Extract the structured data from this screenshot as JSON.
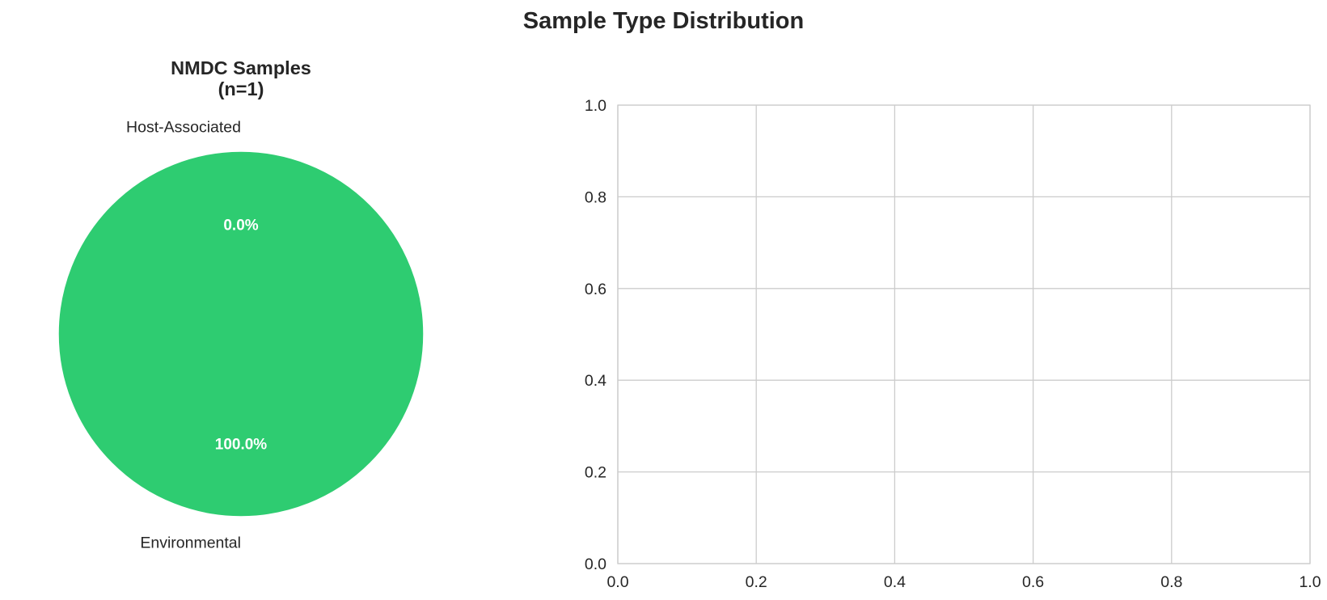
{
  "figure": {
    "title": "Sample Type Distribution"
  },
  "chart_data": [
    {
      "type": "pie",
      "title": "NMDC Samples\n(n=1)",
      "labels": [
        "Host-Associated",
        "Environmental"
      ],
      "values": [
        0,
        1
      ],
      "percent_labels": [
        "0.0%",
        "100.0%"
      ],
      "colors": [
        "#e74c3c",
        "#2ecc71"
      ],
      "start_angle": 90,
      "counterclockwise": true
    },
    {
      "type": "scatter",
      "title": "",
      "xlabel": "",
      "ylabel": "",
      "xlim": [
        0.0,
        1.0
      ],
      "ylim": [
        0.0,
        1.0
      ],
      "xticks": [
        "0.0",
        "0.2",
        "0.4",
        "0.6",
        "0.8",
        "1.0"
      ],
      "yticks": [
        "0.0",
        "0.2",
        "0.4",
        "0.6",
        "0.8",
        "1.0"
      ],
      "grid": true,
      "series": []
    }
  ]
}
